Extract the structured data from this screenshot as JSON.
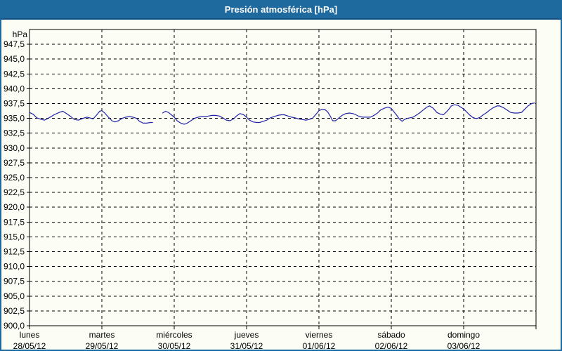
{
  "window": {
    "title": "Presión atmosférica [hPa]"
  },
  "colors": {
    "titlebar": "#1E699E",
    "titlebar_edge": "#14507D",
    "window_border": "#1E699E",
    "background": "#FCFDF5",
    "grid": "#000000",
    "axis": "#000000",
    "line": "#2323A8",
    "text": "#000000",
    "title_text": "#FFFFFF"
  },
  "chart_data": {
    "type": "line",
    "title": "Presión atmosférica [hPa]",
    "unit_label": "hPa",
    "ylim": [
      900,
      950
    ],
    "ytick_step": 2.5,
    "ytick_labels_top_to_bottom": [
      "947,5",
      "945,0",
      "942,5",
      "940,0",
      "937,5",
      "935,0",
      "932,5",
      "930,0",
      "927,5",
      "925,0",
      "922,5",
      "920,0",
      "917,5",
      "915,0",
      "912,5",
      "910,0",
      "907,5",
      "905,0",
      "902,5",
      "900,0"
    ],
    "x_axis_days": [
      {
        "name": "lunes",
        "date": "28/05/12"
      },
      {
        "name": "martes",
        "date": "29/05/12"
      },
      {
        "name": "miércoles",
        "date": "30/05/12"
      },
      {
        "name": "jueves",
        "date": "31/05/12"
      },
      {
        "name": "viernes",
        "date": "01/06/12"
      },
      {
        "name": "sábado",
        "date": "02/06/12"
      },
      {
        "name": "domingo",
        "date": "03/06/12"
      }
    ],
    "grid": "dashed",
    "legend_position": "none",
    "series": [
      {
        "name": "Presión atmosférica",
        "x_unit": "days_from_2012-05-28",
        "y_unit": "hPa",
        "points": [
          [
            0.0,
            936.0
          ],
          [
            0.05,
            935.7
          ],
          [
            0.1,
            935.1
          ],
          [
            0.17,
            934.8
          ],
          [
            0.21,
            934.7
          ],
          [
            0.27,
            935.1
          ],
          [
            0.34,
            935.6
          ],
          [
            0.41,
            936.0
          ],
          [
            0.46,
            936.2
          ],
          [
            0.5,
            935.9
          ],
          [
            0.56,
            935.4
          ],
          [
            0.62,
            934.8
          ],
          [
            0.68,
            934.7
          ],
          [
            0.74,
            935.0
          ],
          [
            0.79,
            935.2
          ],
          [
            0.83,
            935.1
          ],
          [
            0.88,
            934.9
          ],
          [
            0.93,
            935.6
          ],
          [
            0.97,
            936.2
          ],
          [
            1.0,
            936.3
          ],
          [
            1.04,
            935.9
          ],
          [
            1.09,
            935.2
          ],
          [
            1.14,
            934.6
          ],
          [
            1.18,
            934.4
          ],
          [
            1.23,
            934.6
          ],
          [
            1.28,
            935.0
          ],
          [
            1.33,
            935.2
          ],
          [
            1.38,
            935.3
          ],
          [
            1.43,
            935.2
          ],
          [
            1.48,
            935.0
          ],
          [
            1.52,
            934.5
          ],
          [
            1.57,
            934.2
          ],
          [
            1.62,
            934.2
          ],
          [
            1.67,
            934.3
          ],
          [
            1.7,
            934.3
          ],
          null,
          [
            1.84,
            935.9
          ],
          [
            1.88,
            936.2
          ],
          [
            1.92,
            936.0
          ],
          [
            1.96,
            935.6
          ],
          [
            2.0,
            935.2
          ],
          [
            2.04,
            934.6
          ],
          [
            2.09,
            934.2
          ],
          [
            2.14,
            934.0
          ],
          [
            2.18,
            934.2
          ],
          [
            2.23,
            934.6
          ],
          [
            2.28,
            935.0
          ],
          [
            2.33,
            935.2
          ],
          [
            2.38,
            935.3
          ],
          [
            2.43,
            935.3
          ],
          [
            2.48,
            935.4
          ],
          [
            2.52,
            935.5
          ],
          [
            2.57,
            935.5
          ],
          [
            2.62,
            935.4
          ],
          [
            2.67,
            935.1
          ],
          [
            2.72,
            934.7
          ],
          [
            2.77,
            934.6
          ],
          [
            2.82,
            934.9
          ],
          [
            2.86,
            935.4
          ],
          [
            2.91,
            935.8
          ],
          [
            2.96,
            935.6
          ],
          [
            3.0,
            935.2
          ],
          [
            3.04,
            934.7
          ],
          [
            3.09,
            934.4
          ],
          [
            3.14,
            934.3
          ],
          [
            3.18,
            934.3
          ],
          [
            3.23,
            934.5
          ],
          [
            3.28,
            934.7
          ],
          [
            3.33,
            935.1
          ],
          [
            3.38,
            935.3
          ],
          [
            3.43,
            935.5
          ],
          [
            3.48,
            935.6
          ],
          [
            3.52,
            935.6
          ],
          [
            3.57,
            935.4
          ],
          [
            3.62,
            935.2
          ],
          [
            3.67,
            935.1
          ],
          [
            3.72,
            934.9
          ],
          [
            3.77,
            934.8
          ],
          [
            3.82,
            934.7
          ],
          [
            3.86,
            934.8
          ],
          [
            3.91,
            935.0
          ],
          [
            3.96,
            935.7
          ],
          [
            4.0,
            936.3
          ],
          [
            4.04,
            936.5
          ],
          [
            4.08,
            936.5
          ],
          [
            4.12,
            936.1
          ],
          [
            4.16,
            935.3
          ],
          [
            4.19,
            934.6
          ],
          [
            4.23,
            934.6
          ],
          [
            4.27,
            935.0
          ],
          [
            4.32,
            935.5
          ],
          [
            4.37,
            935.8
          ],
          [
            4.42,
            935.9
          ],
          [
            4.47,
            935.8
          ],
          [
            4.51,
            935.6
          ],
          [
            4.56,
            935.3
          ],
          [
            4.61,
            935.2
          ],
          [
            4.66,
            935.2
          ],
          [
            4.71,
            935.2
          ],
          [
            4.76,
            935.5
          ],
          [
            4.81,
            935.9
          ],
          [
            4.85,
            936.4
          ],
          [
            4.9,
            936.7
          ],
          [
            4.95,
            936.9
          ],
          [
            5.0,
            936.7
          ],
          [
            5.03,
            936.2
          ],
          [
            5.07,
            935.6
          ],
          [
            5.11,
            934.9
          ],
          [
            5.15,
            934.5
          ],
          [
            5.18,
            934.8
          ],
          [
            5.22,
            935.0
          ],
          [
            5.26,
            935.1
          ],
          [
            5.3,
            935.2
          ],
          [
            5.34,
            935.5
          ],
          [
            5.39,
            935.9
          ],
          [
            5.44,
            936.4
          ],
          [
            5.49,
            936.9
          ],
          [
            5.53,
            937.1
          ],
          [
            5.58,
            936.7
          ],
          [
            5.63,
            936.0
          ],
          [
            5.68,
            935.7
          ],
          [
            5.72,
            935.6
          ],
          [
            5.78,
            936.3
          ],
          [
            5.83,
            937.1
          ],
          [
            5.87,
            937.3
          ],
          [
            5.92,
            937.2
          ],
          [
            5.96,
            936.9
          ],
          [
            6.0,
            936.6
          ],
          [
            6.04,
            936.1
          ],
          [
            6.08,
            935.6
          ],
          [
            6.12,
            935.2
          ],
          [
            6.16,
            935.0
          ],
          [
            6.19,
            935.0
          ],
          [
            6.23,
            935.2
          ],
          [
            6.27,
            935.6
          ],
          [
            6.31,
            935.9
          ],
          [
            6.36,
            936.4
          ],
          [
            6.41,
            936.8
          ],
          [
            6.46,
            937.1
          ],
          [
            6.5,
            937.1
          ],
          [
            6.55,
            936.8
          ],
          [
            6.6,
            936.4
          ],
          [
            6.65,
            936.0
          ],
          [
            6.7,
            935.9
          ],
          [
            6.75,
            935.9
          ],
          [
            6.8,
            936.0
          ],
          [
            6.84,
            936.5
          ],
          [
            6.89,
            937.1
          ],
          [
            6.94,
            937.5
          ],
          [
            6.98,
            937.6
          ]
        ]
      }
    ]
  }
}
